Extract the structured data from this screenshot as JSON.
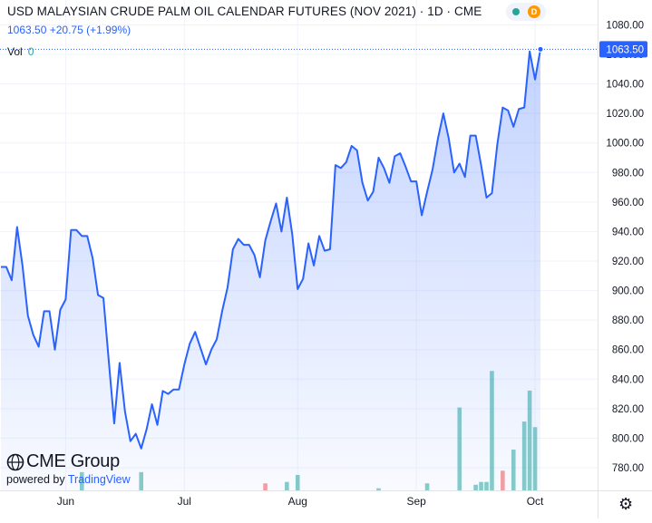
{
  "header": {
    "title": "USD MALAYSIAN CRUDE PALM OIL CALENDAR FUTURES (NOV 2021) · 1D · CME",
    "quote": "1063.50 +20.75 (+1.99%)",
    "vol_label": "Vol",
    "vol_value": "0"
  },
  "badge": {
    "letter": "D",
    "status_color": "#26a69a",
    "accent_color": "#ff9800"
  },
  "branding": {
    "logo": "CME Group",
    "powered_by": "powered by",
    "provider": "TradingView"
  },
  "colors": {
    "line": "#2962ff",
    "volume_up": "#26a69a",
    "volume_down": "#ef5350",
    "last_price_label_bg": "#2962ff"
  },
  "chart_data": {
    "type": "area",
    "xlabel": "",
    "ylabel": "",
    "ylim": [
      770,
      1087
    ],
    "grid": true,
    "y_ticks": [
      780,
      800,
      820,
      840,
      860,
      880,
      900,
      920,
      940,
      960,
      980,
      1000,
      1020,
      1040,
      1060,
      1080
    ],
    "y_tick_labels": [
      "780.00",
      "800.00",
      "820.00",
      "840.00",
      "860.00",
      "880.00",
      "900.00",
      "920.00",
      "940.00",
      "960.00",
      "980.00",
      "1000.00",
      "1020.00",
      "1040.00",
      "1060.00",
      "1080.00"
    ],
    "x_ticks": [
      {
        "label": "Jun",
        "index": 12
      },
      {
        "label": "Jul",
        "index": 34
      },
      {
        "label": "Aug",
        "index": 55
      },
      {
        "label": "Sep",
        "index": 77
      },
      {
        "label": "Oct",
        "index": 99
      }
    ],
    "last_price": 1063.5,
    "last_price_label": "1063.50",
    "series": [
      {
        "values": [
          916,
          916,
          907,
          943,
          917,
          883,
          870,
          862,
          886,
          886,
          860,
          887,
          894,
          941,
          941,
          937,
          937,
          922,
          897,
          895,
          852,
          810,
          851,
          818,
          798,
          803,
          793,
          806,
          823,
          809,
          832,
          830,
          833,
          833,
          850,
          864,
          872,
          861,
          850,
          860,
          867,
          886,
          902,
          928,
          935,
          931,
          931,
          924,
          909,
          934,
          947,
          959,
          940,
          963,
          938,
          901,
          908,
          932,
          917,
          937,
          927,
          928,
          985,
          983,
          987,
          998,
          995,
          973,
          961,
          967,
          990,
          983,
          973,
          991,
          993,
          984,
          974,
          974,
          951,
          967,
          982,
          1003,
          1020,
          1003,
          980,
          986,
          977,
          1005,
          1005,
          985,
          963,
          966,
          999,
          1024,
          1022,
          1011,
          1023,
          1024,
          1062,
          1043,
          1063.5
        ]
      }
    ],
    "volume": [
      {
        "index": 15,
        "value": 1.3,
        "dir": "up"
      },
      {
        "index": 26,
        "value": 1.3,
        "dir": "up"
      },
      {
        "index": 49,
        "value": 0.5,
        "dir": "down"
      },
      {
        "index": 53,
        "value": 0.6,
        "dir": "up"
      },
      {
        "index": 55,
        "value": 1.1,
        "dir": "up"
      },
      {
        "index": 70,
        "value": 0.15,
        "dir": "up"
      },
      {
        "index": 79,
        "value": 0.5,
        "dir": "up"
      },
      {
        "index": 85,
        "value": 5.9,
        "dir": "up"
      },
      {
        "index": 88,
        "value": 0.4,
        "dir": "up"
      },
      {
        "index": 89,
        "value": 0.6,
        "dir": "up"
      },
      {
        "index": 90,
        "value": 0.6,
        "dir": "up"
      },
      {
        "index": 91,
        "value": 8.5,
        "dir": "up"
      },
      {
        "index": 93,
        "value": 1.4,
        "dir": "down"
      },
      {
        "index": 95,
        "value": 2.9,
        "dir": "up"
      },
      {
        "index": 97,
        "value": 4.9,
        "dir": "up"
      },
      {
        "index": 98,
        "value": 7.1,
        "dir": "up"
      },
      {
        "index": 99,
        "value": 4.5,
        "dir": "up"
      }
    ]
  }
}
